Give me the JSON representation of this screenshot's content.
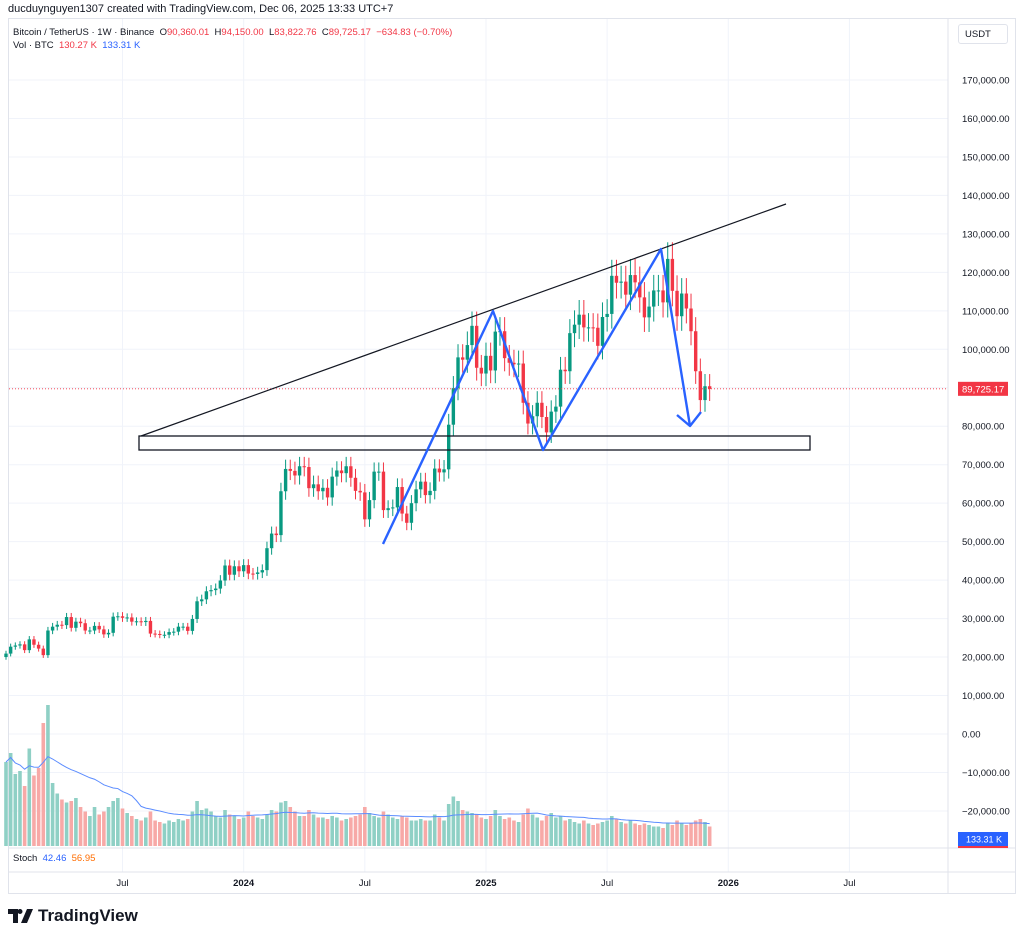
{
  "credit": "ducduynguyen1307 created with TradingView.com, Dec 06, 2025 13:33 UTC+7",
  "legend": {
    "symbol": "Bitcoin / TetherUS · 1W · Binance",
    "open_label": "O",
    "open": "90,360.01",
    "high_label": "H",
    "high": "94,150.00",
    "low_label": "L",
    "low": "83,822.76",
    "close_label": "C",
    "close": "89,725.17",
    "change": "−634.83 (−0.70%)",
    "vol_label": "Vol · BTC",
    "vol": "130.27 K",
    "vol_ma": "133.31 K"
  },
  "currency": "USDT",
  "stoch": {
    "label": "Stoch",
    "k": "42.46",
    "d": "56.95"
  },
  "logo": "TradingView",
  "colors": {
    "up": "#089981",
    "down": "#f23645",
    "drawing": "#2962ff",
    "vol_up": "#8fd0c5",
    "vol_down": "#f7a9a7"
  },
  "chart_data": {
    "type": "candlestick",
    "interval": "1W",
    "start_week": "2023-01-09",
    "first_open": 20.0,
    "closes_k": [
      20.9,
      22.7,
      23.0,
      23.3,
      21.8,
      24.6,
      23.2,
      22.2,
      20.5,
      26.9,
      27.9,
      28.4,
      28.3,
      30.4,
      27.6,
      29.2,
      28.8,
      26.9,
      26.9,
      28.1,
      27.2,
      25.9,
      26.3,
      30.5,
      30.6,
      30.2,
      30.3,
      29.2,
      29.3,
      29.1,
      29.4,
      26.1,
      26.0,
      25.8,
      25.8,
      26.5,
      26.6,
      27.9,
      27.9,
      26.8,
      29.9,
      34.5,
      35.0,
      37.1,
      37.4,
      37.8,
      39.9,
      43.8,
      41.4,
      43.6,
      42.3,
      43.9,
      41.7,
      41.6,
      42.0,
      42.6,
      48.3,
      52.1,
      51.7,
      63.1,
      68.9,
      68.4,
      67.2,
      69.6,
      69.4,
      63.9,
      64.9,
      63.1,
      64.0,
      61.5,
      66.9,
      68.5,
      67.8,
      69.6,
      66.6,
      63.2,
      62.8,
      55.8,
      60.8,
      68.2,
      68.2,
      58.2,
      58.7,
      58.9,
      64.2,
      57.3,
      54.9,
      60.0,
      63.6,
      65.6,
      62.1,
      63.2,
      69.0,
      68.0,
      68.8,
      80.4,
      89.9,
      97.9,
      97.3,
      101.1,
      106.1,
      95.2,
      93.7,
      98.3,
      94.5,
      104.6,
      104.7,
      97.7,
      96.5,
      96.1,
      96.3,
      86.1,
      80.7,
      82.6,
      86.1,
      82.4,
      78.4,
      83.8,
      85.1,
      94.7,
      94.3,
      104.2,
      106.4,
      109.0,
      105.7,
      105.7,
      105.6,
      100.9,
      108.4,
      109.2,
      119.1,
      117.3,
      117.6,
      114.2,
      119.3,
      117.4,
      113.5,
      108.3,
      111.1,
      115.3,
      115.3,
      112.2,
      123.5,
      115.2,
      108.6,
      114.5,
      110.6,
      104.7,
      94.3,
      86.8,
      90.4,
      89.7
    ],
    "volume_k": [
      560,
      620,
      480,
      500,
      400,
      650,
      470,
      520,
      820,
      940,
      420,
      350,
      310,
      290,
      300,
      320,
      260,
      230,
      200,
      260,
      210,
      230,
      260,
      300,
      320,
      250,
      220,
      200,
      180,
      170,
      190,
      230,
      170,
      160,
      150,
      170,
      160,
      180,
      170,
      180,
      230,
      300,
      240,
      250,
      230,
      200,
      190,
      240,
      210,
      200,
      180,
      190,
      230,
      200,
      190,
      180,
      210,
      240,
      230,
      290,
      300,
      260,
      230,
      200,
      200,
      240,
      210,
      190,
      190,
      180,
      200,
      190,
      170,
      180,
      190,
      200,
      210,
      260,
      220,
      200,
      190,
      230,
      210,
      190,
      180,
      200,
      190,
      170,
      170,
      180,
      170,
      170,
      210,
      190,
      170,
      280,
      330,
      300,
      240,
      230,
      220,
      210,
      190,
      180,
      200,
      240,
      200,
      180,
      190,
      170,
      160,
      210,
      250,
      210,
      190,
      170,
      200,
      220,
      190,
      200,
      170,
      180,
      160,
      150,
      170,
      150,
      140,
      150,
      160,
      170,
      200,
      180,
      160,
      150,
      170,
      150,
      140,
      150,
      140,
      130,
      130,
      120,
      150,
      140,
      170,
      150,
      140,
      150,
      170,
      180,
      160,
      130
    ],
    "price_axis": [
      "170,000.00",
      "160,000.00",
      "150,000.00",
      "140,000.00",
      "130,000.00",
      "120,000.00",
      "110,000.00",
      "100,000.00",
      "90,000.00",
      "80,000.00",
      "70,000.00",
      "60,000.00",
      "50,000.00",
      "40,000.00",
      "30,000.00",
      "20,000.00",
      "10,000.00",
      "0.00",
      "−10,000.00",
      "−20,000.00"
    ],
    "price_ticks_k": [
      170,
      160,
      150,
      140,
      130,
      120,
      110,
      100,
      null,
      80,
      70,
      60,
      50,
      40,
      30,
      20,
      10,
      0,
      -10,
      -20
    ],
    "last_price": "89,725.17",
    "last_price_k": 89.725,
    "vol_ma_label": "133.31 K",
    "time_axis": [
      "Jul",
      "2024",
      "Jul",
      "2025",
      "Jul",
      "2026",
      "Jul"
    ],
    "time_ticks_week": [
      25,
      51,
      77,
      103,
      129,
      155,
      181
    ],
    "ylim_k": [
      -20,
      170
    ]
  }
}
